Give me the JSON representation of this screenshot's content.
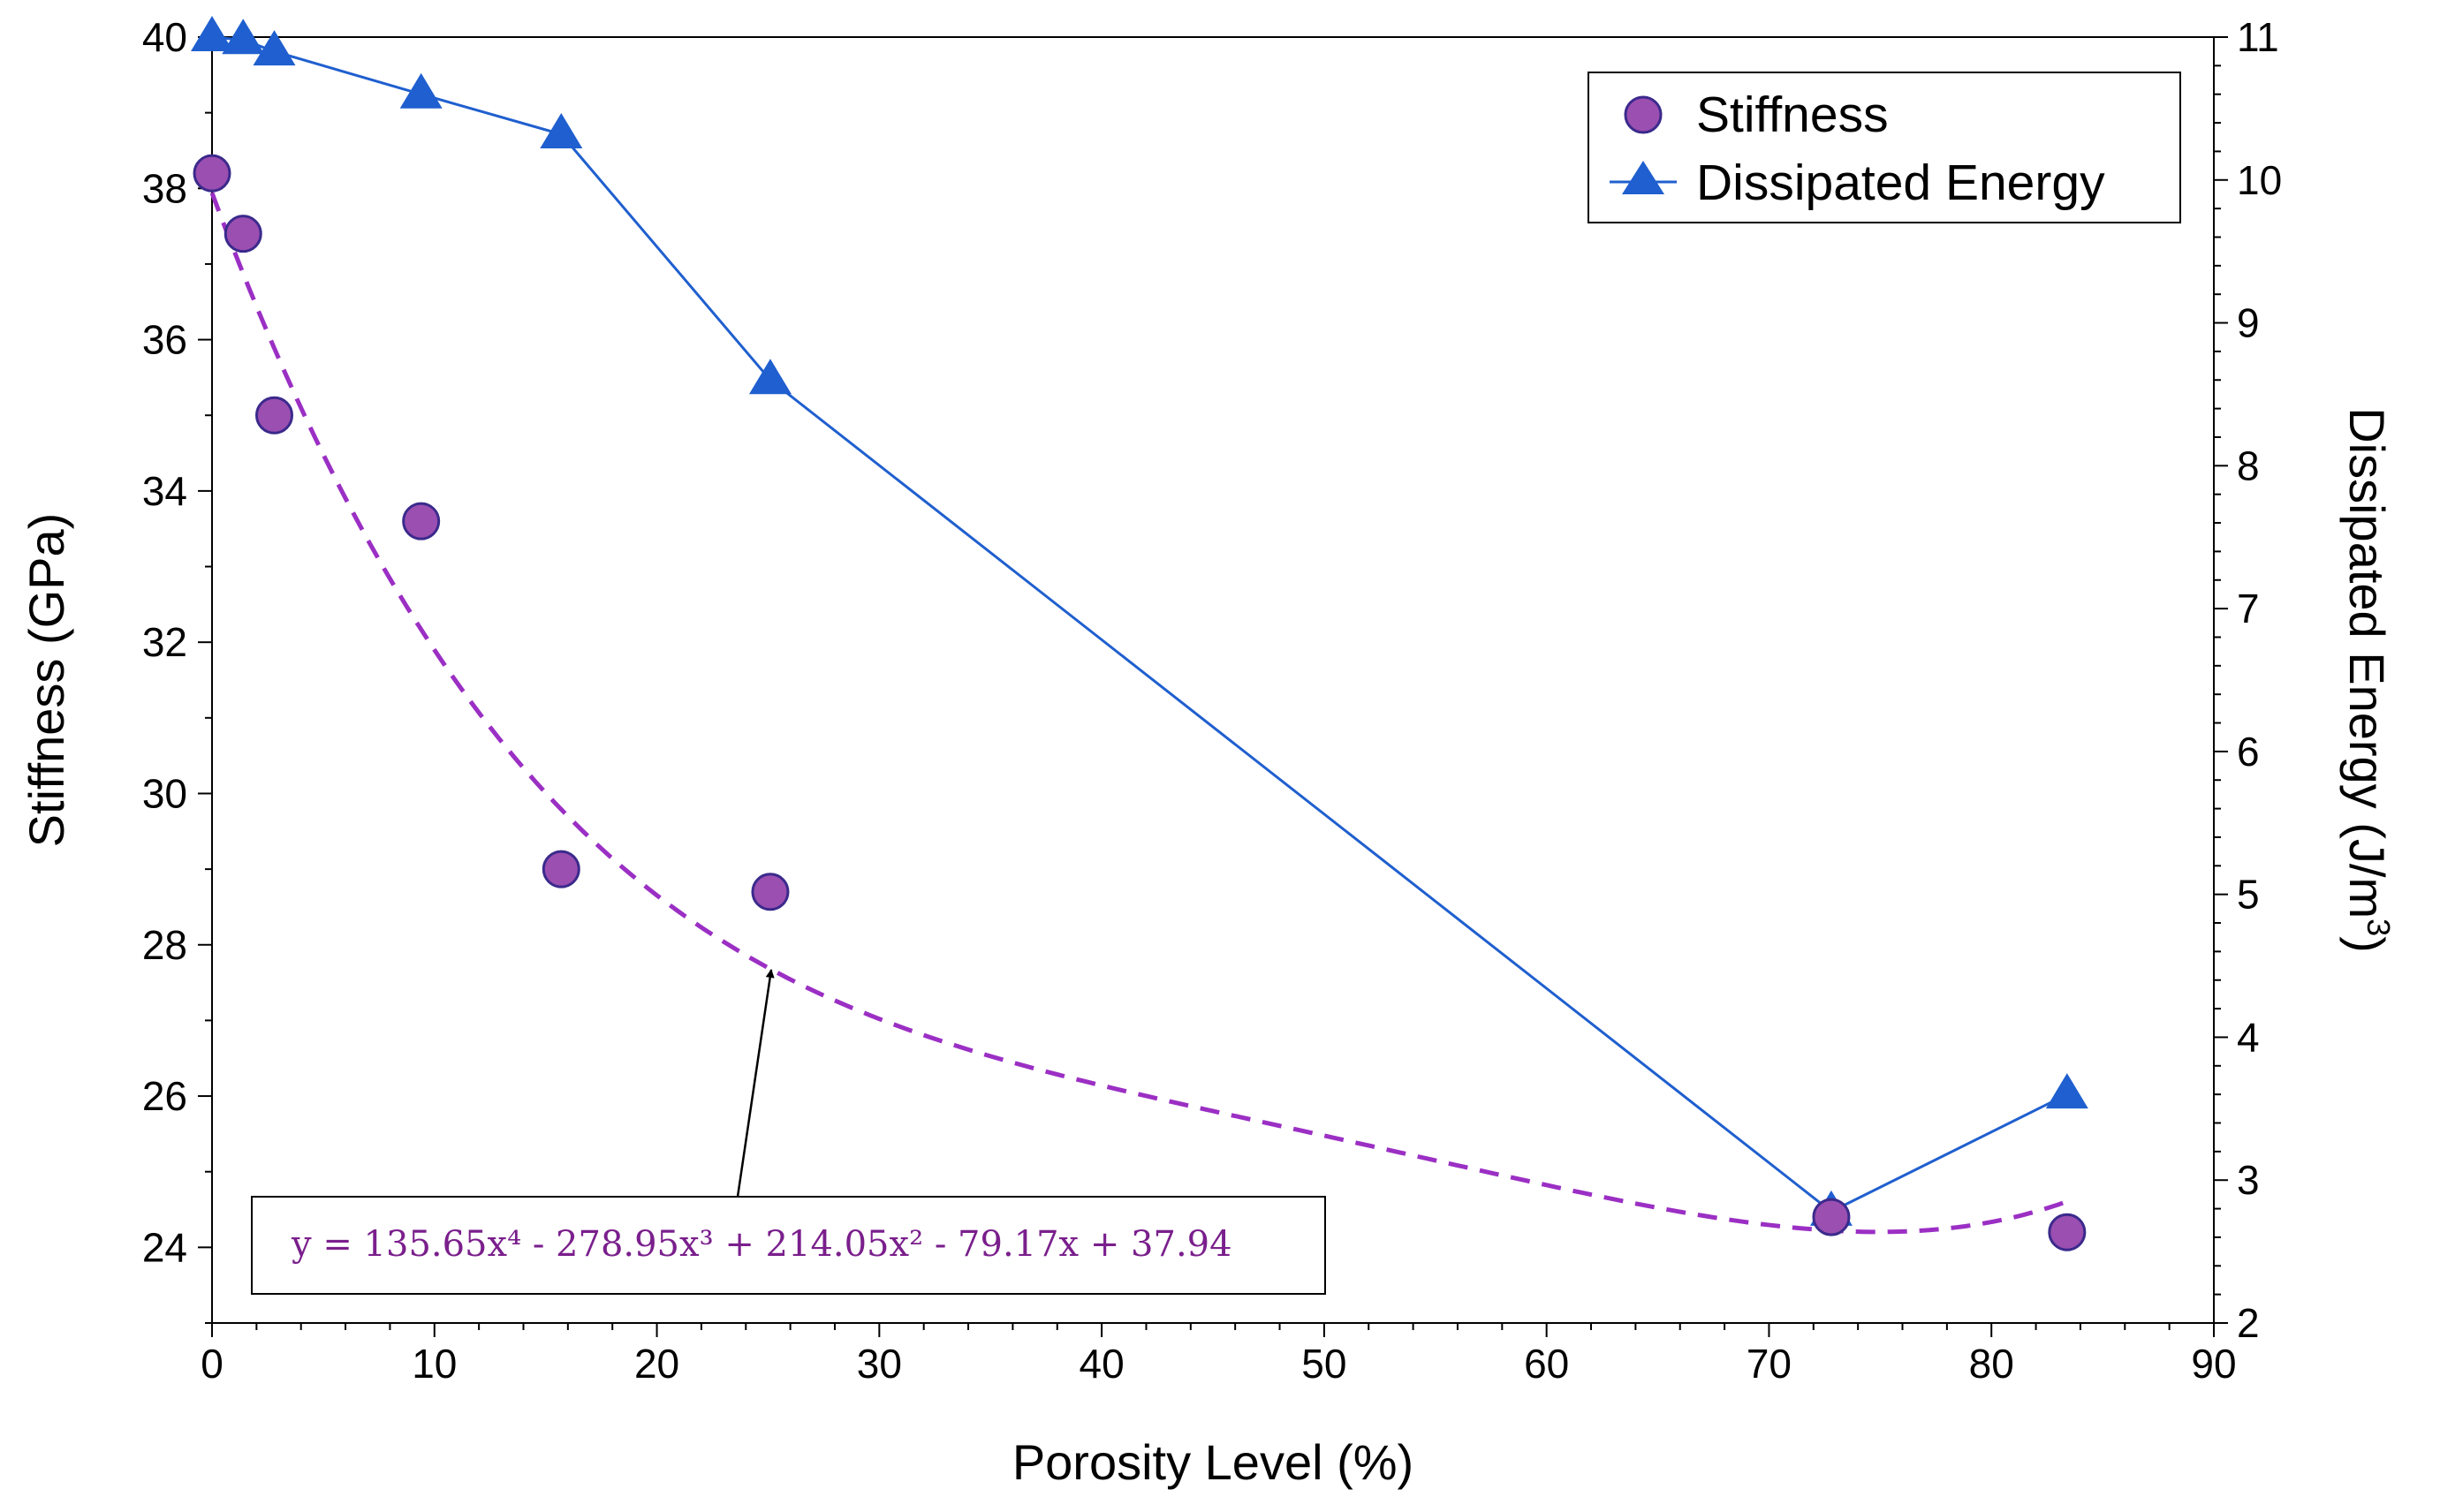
{
  "chart_data": {
    "type": "scatter",
    "xlabel": "Porosity Level (%)",
    "ylabel": "Stiffness (GPa)",
    "y2label": "Dissipated Energy (J/m",
    "y2label_sup": "3",
    "y2label_end": ")",
    "xlim": [
      0,
      90
    ],
    "ylim": [
      23,
      40
    ],
    "y2lim": [
      2,
      11
    ],
    "xticks": [
      "0",
      "10",
      "20",
      "30",
      "40",
      "50",
      "60",
      "70",
      "80",
      "90"
    ],
    "yticks": [
      "24",
      "26",
      "28",
      "30",
      "32",
      "34",
      "36",
      "38",
      "40"
    ],
    "y2ticks": [
      "2",
      "3",
      "4",
      "5",
      "6",
      "7",
      "8",
      "9",
      "10",
      "11"
    ],
    "grid": false,
    "legend_position": "top-right",
    "colors": {
      "stiffness": "#9b4fb0",
      "stiffness_edge": "#3b2a8c",
      "energy": "#1f5fcf",
      "fit": "#9b2fc4",
      "equation": "#7a1f8c"
    },
    "series": [
      {
        "name": "Stiffness",
        "axis": "left",
        "marker": "circle",
        "x": [
          0,
          1.4,
          2.8,
          9.4,
          15.7,
          25.1,
          72.8,
          83.4
        ],
        "y": [
          38.2,
          37.4,
          35.0,
          33.6,
          29.0,
          28.7,
          24.4,
          24.2
        ]
      },
      {
        "name": "Dissipated Energy",
        "axis": "right",
        "marker": "triangle",
        "line": true,
        "x": [
          0,
          1.4,
          2.8,
          9.4,
          15.7,
          25.1,
          72.8,
          83.4
        ],
        "y": [
          11.0,
          10.98,
          10.9,
          10.6,
          10.32,
          8.6,
          2.78,
          3.6
        ]
      }
    ],
    "fit": {
      "label": "y = 135.65x⁴ - 278.95x³ + 214.05x² - 79.17x + 37.94",
      "coefficients": [
        135.65,
        -278.95,
        214.05,
        -79.17,
        37.94
      ],
      "x_unit": "fraction",
      "arrow_target_x": 25
    }
  }
}
